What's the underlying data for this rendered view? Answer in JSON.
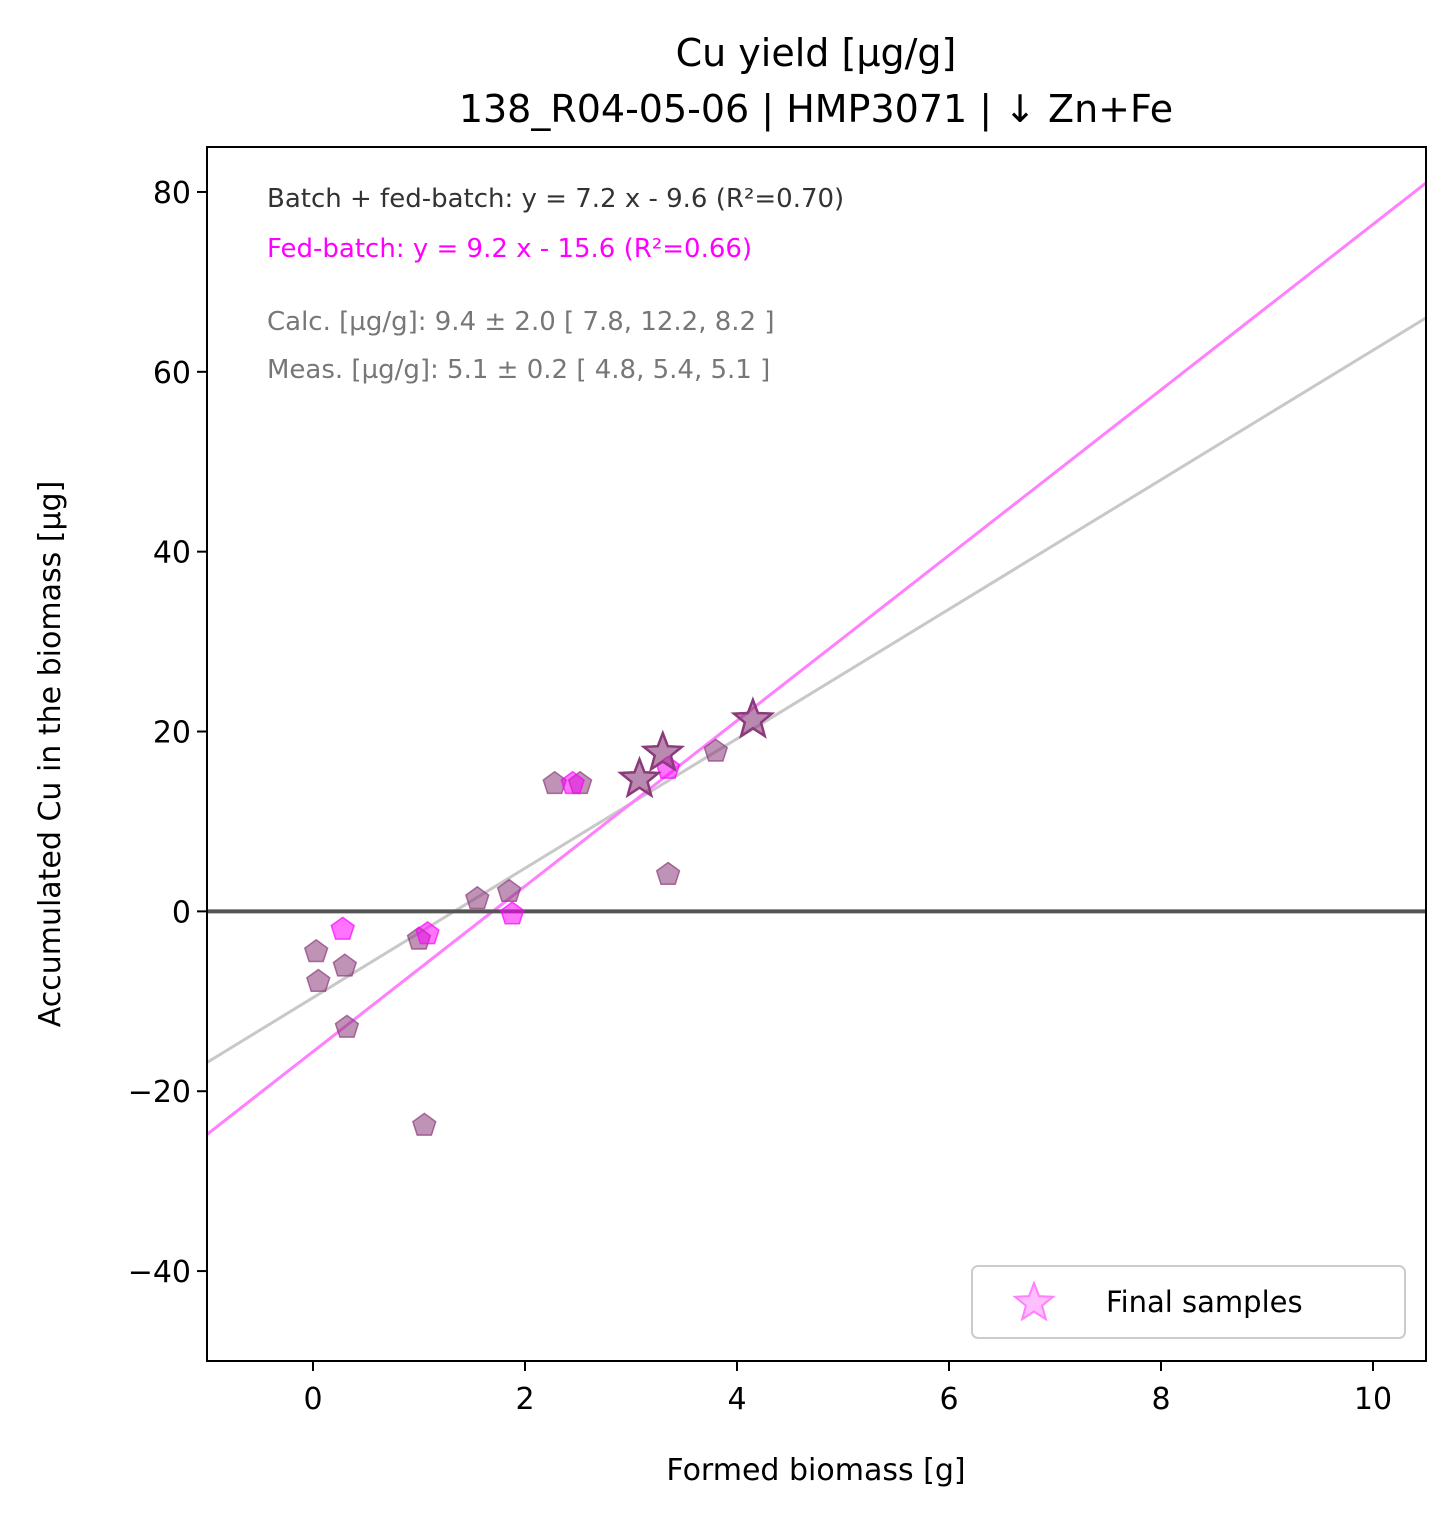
{
  "chart_data": {
    "type": "scatter",
    "title_line1": "Cu yield [µg/g]",
    "title_line2": "138_R04-05-06  |  HMP3071  |  ↓ Zn+Fe",
    "xlabel": "Formed biomass [g]",
    "ylabel": "Accumulated Cu in the biomass [µg]",
    "xlim": [
      -1,
      10.5
    ],
    "ylim": [
      -50,
      85
    ],
    "xticks": [
      0,
      2,
      4,
      6,
      8,
      10
    ],
    "xtick_labels": [
      "0",
      "2",
      "4",
      "6",
      "8",
      "10"
    ],
    "yticks": [
      -40,
      -20,
      0,
      20,
      40,
      60,
      80
    ],
    "ytick_labels": [
      "−40",
      "−20",
      "0",
      "20",
      "40",
      "60",
      "80"
    ],
    "grid": false,
    "legend_position": "lower right",
    "annotations": {
      "fit_all": "Batch + fed-batch: y = 7.2 x - 9.6 (R²=0.70)",
      "fit_fed": "Fed-batch: y = 9.2 x - 15.6 (R²=0.66)",
      "calc": "Calc. [µg/g]: 9.4 ± 2.0 [ 7.8, 12.2, 8.2 ]",
      "meas": "Meas. [µg/g]: 5.1 ± 0.2 [ 4.8, 5.4, 5.1 ]"
    },
    "legend": {
      "label": "Final samples"
    },
    "colors": {
      "fed_batch": "#ff00ff",
      "batch_points": "#8b3a7a",
      "fit_all_line": "#c8c8c8",
      "fit_fed_line": "#ff7fff",
      "zero_line": "#555555",
      "annot_all": "#333333",
      "annot_stats": "#777777"
    },
    "lines": [
      {
        "slope": 7.2,
        "intercept": -9.6,
        "range": [
          -1,
          10.5
        ],
        "color_key": "fit_all_line"
      },
      {
        "slope": 9.2,
        "intercept": -15.6,
        "range": [
          -1,
          10.5
        ],
        "color_key": "fit_fed_line"
      }
    ],
    "hline": {
      "y": 0,
      "color_key": "zero_line"
    },
    "series": [
      {
        "marker": "pentagon",
        "points": [
          [
            0.03,
            -4.5
          ],
          [
            0.05,
            -7.8
          ],
          [
            0.3,
            -6.1
          ],
          [
            0.32,
            -12.9
          ],
          [
            1.0,
            -3.1
          ],
          [
            1.05,
            -23.8
          ],
          [
            1.55,
            1.4
          ],
          [
            1.85,
            2.2
          ],
          [
            2.28,
            14.2
          ],
          [
            2.52,
            14.2
          ],
          [
            3.35,
            4.1
          ],
          [
            3.8,
            17.8
          ]
        ],
        "color_key": "batch_points"
      },
      {
        "marker": "pentagon",
        "points": [
          [
            0.28,
            -2.0
          ],
          [
            1.08,
            -2.5
          ],
          [
            1.88,
            -0.3
          ],
          [
            2.45,
            14.2
          ],
          [
            3.35,
            15.9
          ]
        ],
        "color_key": "fed_batch"
      },
      {
        "name": "Final samples",
        "marker": "star",
        "points": [
          [
            3.08,
            14.7
          ],
          [
            3.3,
            17.6
          ],
          [
            4.15,
            21.3
          ]
        ],
        "color_key": "batch_points"
      }
    ]
  }
}
